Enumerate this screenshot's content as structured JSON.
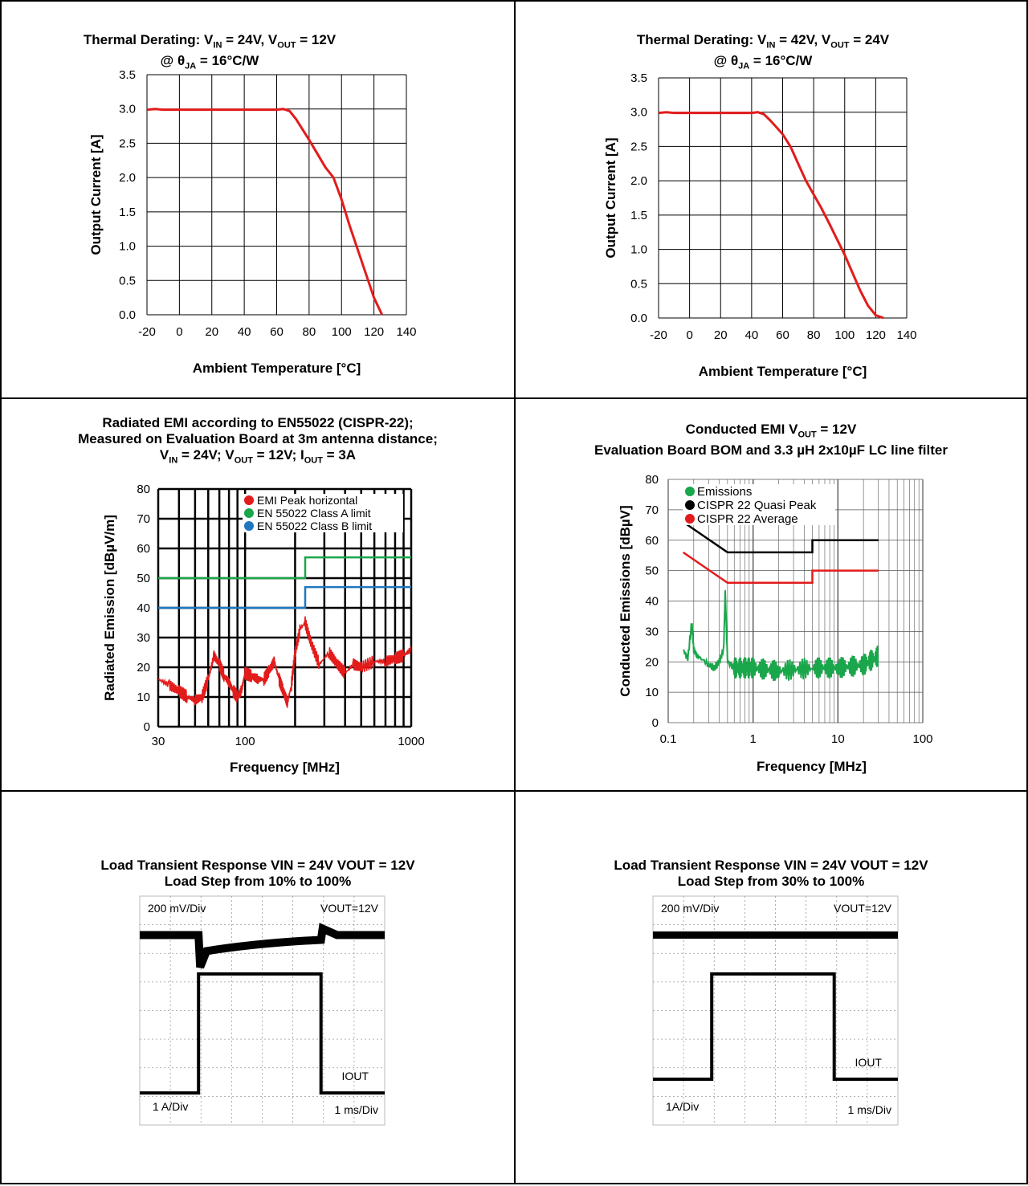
{
  "colors": {
    "red": "#e31b1b",
    "green": "#1aa64b",
    "blue": "#1f77c0",
    "black": "#000000"
  },
  "chart_data": [
    {
      "id": "derating1",
      "type": "line",
      "title_line1_pre": "Thermal Derating: V",
      "title_line1_sub1": "IN",
      "title_line1_mid": " = 24V, V",
      "title_line1_sub2": "OUT",
      "title_line1_post": " = 12V",
      "title_line2_pre": "@ θ",
      "title_line2_sub": "JA",
      "title_line2_post": " = 16°C/W",
      "xlabel": "Ambient Temperature [°C]",
      "ylabel": "Output Current [A]",
      "xlim": [
        -20,
        140
      ],
      "ylim": [
        0,
        3.5
      ],
      "xticks": [
        "-20",
        "0",
        "20",
        "40",
        "60",
        "80",
        "100",
        "120",
        "140"
      ],
      "yticks": [
        "0.0",
        "0.5",
        "1.0",
        "1.5",
        "2.0",
        "2.5",
        "3.0",
        "3.5"
      ],
      "series": [
        {
          "x": [
            -20,
            -15,
            -10,
            0,
            20,
            40,
            60,
            64,
            68,
            72,
            76,
            80,
            85,
            90,
            95,
            100,
            105,
            110,
            115,
            120,
            125
          ],
          "y": [
            2.99,
            3.0,
            2.99,
            2.99,
            2.99,
            2.99,
            2.99,
            3.0,
            2.97,
            2.85,
            2.7,
            2.55,
            2.35,
            2.15,
            2.0,
            1.68,
            1.3,
            0.95,
            0.6,
            0.25,
            0
          ]
        }
      ]
    },
    {
      "id": "derating2",
      "type": "line",
      "title_line1_pre": "Thermal Derating: V",
      "title_line1_sub1": "IN",
      "title_line1_mid": " = 42V, V",
      "title_line1_sub2": "OUT",
      "title_line1_post": " = 24V",
      "title_line2_pre": "@ θ",
      "title_line2_sub": "JA",
      "title_line2_post": " = 16°C/W",
      "xlabel": "Ambient Temperature [°C]",
      "ylabel": "Output Current [A]",
      "xlim": [
        -20,
        140
      ],
      "ylim": [
        0,
        3.5
      ],
      "xticks": [
        "-20",
        "0",
        "20",
        "40",
        "60",
        "80",
        "100",
        "120",
        "140"
      ],
      "yticks": [
        "0.0",
        "0.5",
        "1.0",
        "1.5",
        "2.0",
        "2.5",
        "3.0",
        "3.5"
      ],
      "series": [
        {
          "x": [
            -20,
            -15,
            -10,
            0,
            20,
            40,
            44,
            48,
            52,
            56,
            60,
            65,
            70,
            75,
            80,
            85,
            90,
            95,
            100,
            105,
            110,
            115,
            120,
            125
          ],
          "y": [
            2.99,
            3.0,
            2.99,
            2.99,
            2.99,
            2.99,
            3.0,
            2.97,
            2.88,
            2.78,
            2.68,
            2.5,
            2.25,
            2.0,
            1.8,
            1.6,
            1.38,
            1.15,
            0.92,
            0.66,
            0.4,
            0.18,
            0.04,
            0
          ]
        }
      ]
    },
    {
      "id": "radiated",
      "type": "line",
      "title_line1": "Radiated EMI according to EN55022 (CISPR-22);",
      "title_line2": "Measured on Evaluation Board at 3m antenna distance;",
      "title_line3_parts": [
        "V",
        "IN",
        " = 24V; V",
        "OUT",
        " = 12V; I",
        "OUT",
        " = 3A"
      ],
      "xlabel": "Frequency [MHz]",
      "ylabel": "Radiated Emission [dBµV/m]",
      "xscale": "log",
      "xlim": [
        30,
        1000
      ],
      "ylim": [
        0,
        80
      ],
      "xticks": [
        "30",
        "100",
        "1000"
      ],
      "yticks": [
        "0",
        "10",
        "20",
        "30",
        "40",
        "50",
        "60",
        "70",
        "80"
      ],
      "legend": [
        "EMI Peak horizontal",
        "EN 55022 Class A limit",
        "EN 55022 Class B limit"
      ],
      "legend_position": "top-right",
      "classA": {
        "x": [
          30,
          230,
          230,
          1000
        ],
        "y": [
          50,
          50,
          57,
          57
        ]
      },
      "classB": {
        "x": [
          30,
          230,
          230,
          1000
        ],
        "y": [
          40,
          40,
          47,
          47
        ]
      },
      "peak": {
        "x": [
          30,
          35,
          40,
          45,
          50,
          55,
          60,
          65,
          70,
          75,
          80,
          85,
          90,
          95,
          100,
          110,
          120,
          130,
          140,
          150,
          160,
          170,
          180,
          190,
          200,
          215,
          230,
          250,
          280,
          320,
          360,
          400,
          450,
          500,
          600,
          700,
          800,
          900,
          1000
        ],
        "y": [
          16,
          14,
          12,
          10,
          9,
          10,
          16,
          24,
          21,
          17,
          15,
          12,
          10,
          12,
          18,
          17,
          16,
          16,
          19,
          22,
          16,
          12,
          8,
          14,
          25,
          33,
          35,
          28,
          21,
          25,
          21,
          18,
          21,
          20,
          22,
          22,
          23,
          24,
          26
        ]
      }
    },
    {
      "id": "conducted",
      "type": "line",
      "title_line1_pre": "Conducted EMI  V",
      "title_line1_sub": "OUT",
      "title_line1_post": " = 12V",
      "title_line2": "Evaluation Board BOM and 3.3 µH 2x10µF LC line filter",
      "xlabel": "Frequency [MHz]",
      "ylabel": "Conducted Emissions [dBµV]",
      "xscale": "log",
      "xlim": [
        0.1,
        100
      ],
      "ylim": [
        0,
        80
      ],
      "xticks": [
        "0.1",
        "1",
        "10",
        "100"
      ],
      "yticks": [
        "0",
        "10",
        "20",
        "30",
        "40",
        "50",
        "60",
        "70",
        "80"
      ],
      "legend": [
        "Emissions",
        "CISPR 22 Quasi Peak",
        "CISPR 22 Average"
      ],
      "legend_position": "top-left",
      "quasi": {
        "x": [
          0.15,
          0.5,
          5,
          5,
          30
        ],
        "y": [
          66,
          56,
          56,
          60,
          60
        ]
      },
      "average": {
        "x": [
          0.15,
          0.5,
          5,
          5,
          30
        ],
        "y": [
          56,
          46,
          46,
          50,
          50
        ]
      },
      "emissions": {
        "x": [
          0.15,
          0.17,
          0.19,
          0.2,
          0.22,
          0.25,
          0.3,
          0.35,
          0.4,
          0.45,
          0.47,
          0.5,
          0.6,
          0.8,
          1,
          2,
          5,
          10,
          20,
          30
        ],
        "y": [
          24,
          21,
          33,
          24,
          22,
          21,
          19,
          18,
          20,
          24,
          43,
          20,
          18,
          18,
          18,
          17,
          18,
          18,
          19,
          22
        ]
      }
    },
    {
      "id": "transient1",
      "type": "line",
      "title_line1": "Load Transient Response VIN = 24V VOUT = 12V",
      "title_line2": "Load Step from 10% to 100%",
      "labels": {
        "tl": "200 mV/Div",
        "tr": "VOUT=12V",
        "iout": "IOUT",
        "bl": "1 A/Div",
        "br": "1 ms/Div"
      }
    },
    {
      "id": "transient2",
      "type": "line",
      "title_line1": "Load Transient Response VIN = 24V VOUT = 12V",
      "title_line2": "Load Step from 30% to 100%",
      "labels": {
        "tl": "200 mV/Div",
        "tr": "VOUT=12V",
        "iout": "IOUT",
        "bl": "1A/Div",
        "br": "1 ms/Div"
      }
    }
  ]
}
